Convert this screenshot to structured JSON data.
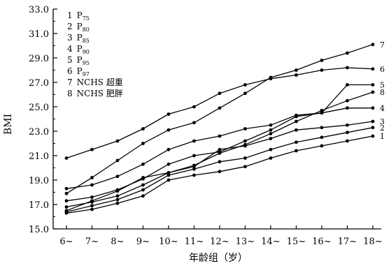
{
  "chart_data": {
    "type": "line",
    "title": "",
    "xlabel": "年龄组（岁）",
    "ylabel": "BMI",
    "categories": [
      "6~",
      "7~",
      "8~",
      "9~",
      "10~",
      "11~",
      "12~",
      "13~",
      "14~",
      "15~",
      "16~",
      "17~",
      "18~"
    ],
    "ylim": [
      15.0,
      33.0
    ],
    "yticks": [
      "15.0",
      "17.0",
      "19.0",
      "21.0",
      "23.0",
      "25.0",
      "27.0",
      "29.0",
      "31.0",
      "33.0"
    ],
    "grid": false,
    "legend_position": "top-left",
    "marker": "dot",
    "line_color": "#000000",
    "series": [
      {
        "number": "1",
        "label": "P",
        "label_sub": "75",
        "values": [
          16.3,
          16.6,
          17.1,
          17.7,
          19.0,
          19.4,
          19.7,
          20.1,
          20.8,
          21.4,
          21.8,
          22.2,
          22.6
        ]
      },
      {
        "number": "2",
        "label": "P",
        "label_sub": "80",
        "values": [
          16.4,
          16.9,
          17.4,
          18.2,
          19.4,
          19.9,
          20.5,
          20.8,
          21.5,
          22.1,
          22.5,
          22.9,
          23.3
        ]
      },
      {
        "number": "3",
        "label": "P",
        "label_sub": "85",
        "values": [
          16.8,
          17.2,
          17.7,
          18.6,
          19.6,
          20.1,
          21.5,
          21.8,
          22.4,
          23.1,
          23.3,
          23.5,
          23.8
        ]
      },
      {
        "number": "4",
        "label": "P",
        "label_sub": "90",
        "values": [
          17.3,
          17.6,
          18.2,
          19.1,
          20.3,
          21.0,
          21.3,
          22.2,
          23.1,
          24.2,
          24.5,
          24.9,
          24.9
        ]
      },
      {
        "number": "5",
        "label": "P",
        "label_sub": "95",
        "values": [
          18.3,
          18.6,
          19.3,
          20.3,
          21.5,
          22.2,
          22.6,
          23.2,
          23.5,
          24.3,
          24.5,
          26.8,
          26.8
        ]
      },
      {
        "number": "6",
        "label": "P",
        "label_sub": "97",
        "values": [
          20.8,
          21.5,
          22.2,
          23.2,
          24.4,
          25.0,
          26.1,
          26.8,
          27.3,
          27.6,
          28.0,
          28.2,
          28.1
        ]
      },
      {
        "number": "7",
        "label": "NCHS 超重",
        "label_sub": "",
        "values": [
          17.9,
          19.2,
          20.6,
          22.0,
          23.1,
          23.7,
          24.9,
          26.1,
          27.4,
          28.0,
          28.8,
          29.4,
          30.1
        ]
      },
      {
        "number": "8",
        "label": "NCHS 肥胖",
        "label_sub": "",
        "values": [
          16.5,
          17.3,
          18.1,
          19.2,
          19.6,
          20.2,
          21.2,
          21.9,
          22.8,
          23.8,
          24.7,
          25.5,
          26.2
        ]
      }
    ]
  }
}
